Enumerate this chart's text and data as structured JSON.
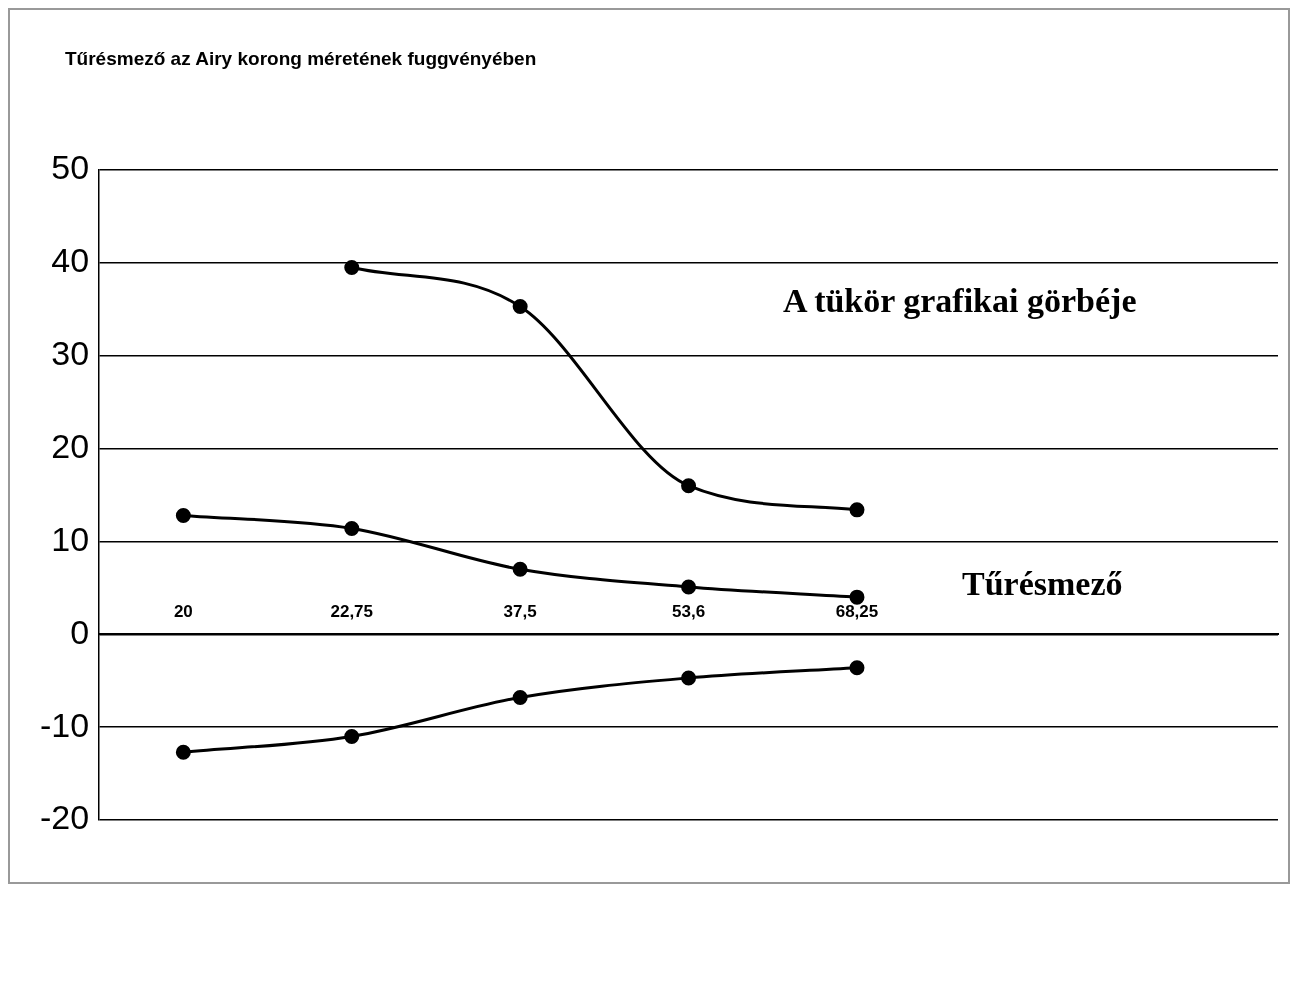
{
  "chart_data": {
    "type": "line",
    "title": "Tűrésmező az Airy korong méretének fuggvényében",
    "categories": [
      "20",
      "22,75",
      "37,5",
      "53,6",
      "68,25",
      null,
      null
    ],
    "series": [
      {
        "color": "#000000",
        "values": [
          null,
          39.5,
          35.3,
          16,
          13.4,
          null,
          null
        ]
      },
      {
        "color": "#000000",
        "values": [
          12.8,
          11.4,
          7,
          5.1,
          4,
          null,
          null
        ]
      },
      {
        "color": "#000000",
        "values": [
          -12.7,
          -11,
          -6.8,
          -4.7,
          -3.6,
          null,
          null
        ]
      }
    ],
    "ylim": [
      -20,
      50
    ],
    "yticks": [
      -20,
      -10,
      0,
      10,
      20,
      30,
      40,
      50
    ],
    "grid": "y",
    "legend": false,
    "marker": "circle",
    "line_style": "solid",
    "annotations": [
      "A tükör grafikai görbéje",
      "Tűrésmező"
    ]
  }
}
